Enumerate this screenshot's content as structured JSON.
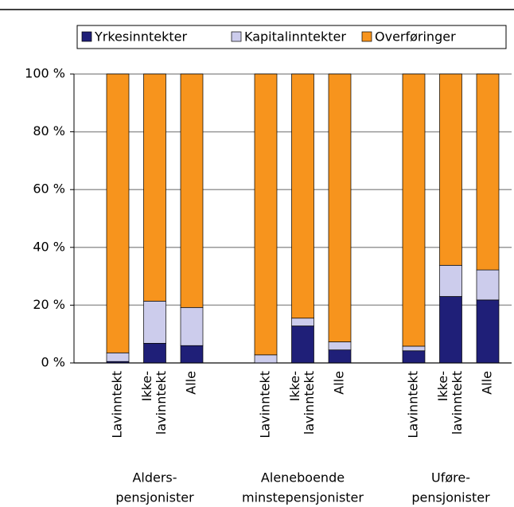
{
  "chart_data": {
    "type": "bar",
    "stacked": true,
    "categories": [
      [
        "Lavinntekt"
      ],
      [
        "Ikke-",
        "lavinntekt"
      ],
      [
        "Alle"
      ],
      [
        "Lavinntekt"
      ],
      [
        "Ikke-",
        "lavinntekt"
      ],
      [
        "Alle"
      ],
      [
        "Lavinntekt"
      ],
      [
        "Ikke-",
        "lavinntekt"
      ],
      [
        "Alle"
      ]
    ],
    "groups": [
      [
        "Alders-",
        "pensjonister"
      ],
      [
        "Aleneboende",
        "minstepensjonister"
      ],
      [
        "Uføre-",
        "pensjonister"
      ]
    ],
    "series": [
      {
        "name": "Yrkesinntekter",
        "color": "#1f1f78",
        "values": [
          0.5,
          6.8,
          6,
          0,
          12.8,
          4.5,
          4.2,
          23,
          21.8
        ]
      },
      {
        "name": "Kapitalinntekter",
        "color": "#ccccec",
        "values": [
          3,
          14.6,
          13.2,
          2.8,
          2.7,
          2.8,
          1.6,
          10.8,
          10.4
        ]
      },
      {
        "name": "Overføringer",
        "color": "#f7941d",
        "values": [
          96.5,
          78.6,
          80.8,
          97.2,
          84.5,
          92.7,
          94.2,
          66.2,
          67.8
        ]
      }
    ],
    "ylim": [
      0,
      100
    ],
    "yticks": [
      {
        "value": 0,
        "label": "0 %"
      },
      {
        "value": 20,
        "label": "20 %"
      },
      {
        "value": 40,
        "label": "40 %"
      },
      {
        "value": 60,
        "label": "60 %"
      },
      {
        "value": 80,
        "label": "80 %"
      },
      {
        "value": 100,
        "label": "100 %"
      }
    ],
    "grid": true,
    "legend": "top"
  }
}
